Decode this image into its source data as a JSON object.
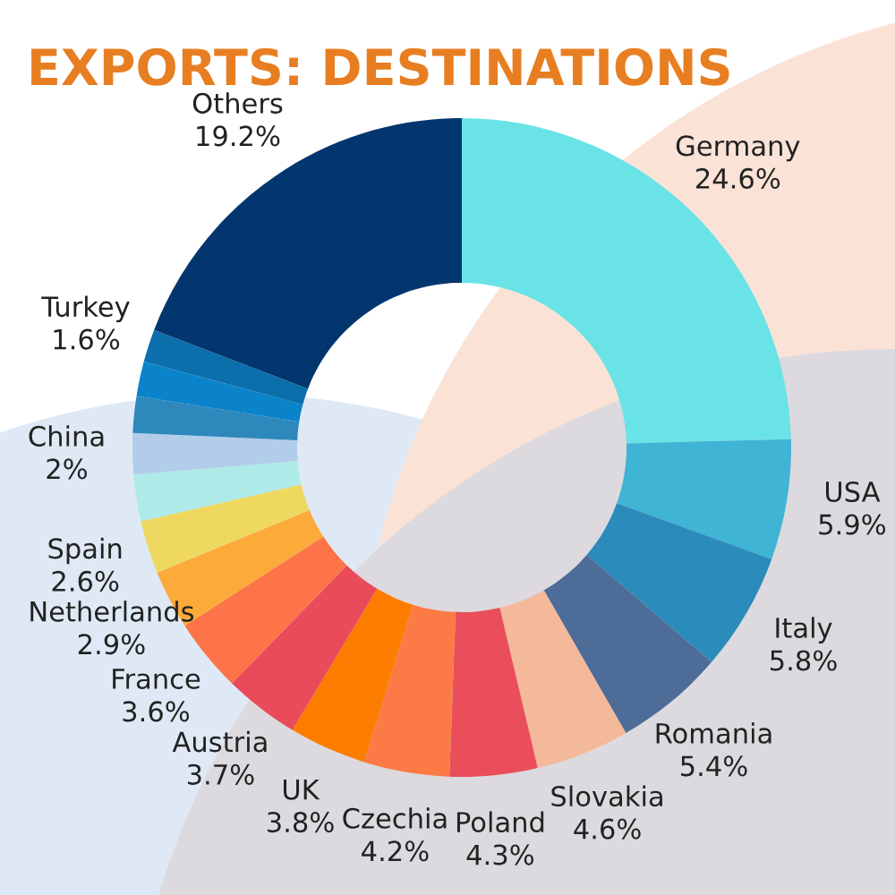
{
  "chart_data": {
    "type": "donut",
    "title": "EXPORTS: DESTINATIONS",
    "categories": [
      "Germany",
      "USA",
      "Italy",
      "Romania",
      "Slovakia",
      "Poland",
      "Czechia",
      "UK",
      "Austria",
      "France",
      "Netherlands",
      "Spain",
      null,
      "China",
      null,
      null,
      "Turkey",
      "Others"
    ],
    "values": [
      24.6,
      5.9,
      5.8,
      5.4,
      4.6,
      4.3,
      4.2,
      3.8,
      3.7,
      3.6,
      2.9,
      2.6,
      2.3,
      2,
      1.8,
      1.7,
      1.6,
      19.2
    ],
    "value_labels": [
      "24.6%",
      "5.9%",
      "5.8%",
      "5.4%",
      "4.6%",
      "4.3%",
      "4.2%",
      "3.8%",
      "3.7%",
      "3.6%",
      "2.9%",
      "2.6%",
      null,
      "2%",
      null,
      null,
      "1.6%",
      "19.2%"
    ],
    "colors": [
      "#6ae3e7",
      "#40b4d4",
      "#2b8bbb",
      "#4e6c98",
      "#f4b89a",
      "#e94e5a",
      "#fc7a46",
      "#fc7d00",
      "#e94b5a",
      "#fc7447",
      "#fcaa3a",
      "#efd860",
      "#aeeae8",
      "#b1cdea",
      "#2f88bb",
      "#0a83ca",
      "#0b6fac",
      "#03366e"
    ],
    "legend": false
  }
}
